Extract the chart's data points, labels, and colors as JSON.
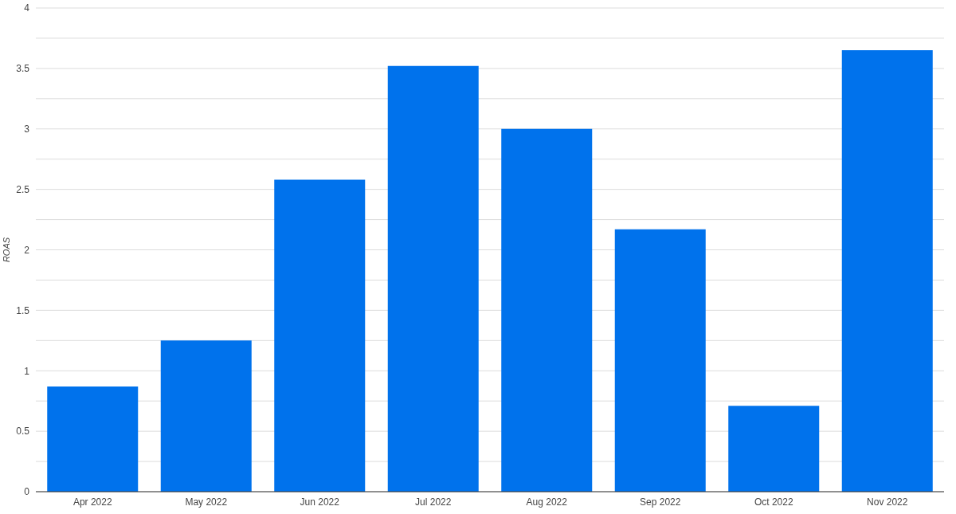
{
  "chart_data": {
    "type": "bar",
    "ylabel": "ROAS",
    "categories": [
      "Apr 2022",
      "May 2022",
      "Jun 2022",
      "Jul 2022",
      "Aug 2022",
      "Sep 2022",
      "Oct 2022",
      "Nov 2022"
    ],
    "values": [
      0.87,
      1.25,
      2.58,
      3.52,
      3.0,
      2.17,
      0.71,
      3.65
    ],
    "color": "#0072ec",
    "ylim": [
      0,
      4
    ],
    "yticks": [
      0,
      {
        "value": 0.25,
        "label": null
      },
      0.5,
      {
        "value": 0.75,
        "label": null
      },
      1,
      {
        "value": 1.25,
        "label": null
      },
      1.5,
      {
        "value": 1.75,
        "label": null
      },
      2,
      {
        "value": 2.25,
        "label": null
      },
      2.5,
      {
        "value": 2.75,
        "label": null
      },
      3,
      {
        "value": 3.25,
        "label": null
      },
      3.5,
      {
        "value": 3.75,
        "label": null
      },
      4
    ],
    "grid": "y"
  }
}
